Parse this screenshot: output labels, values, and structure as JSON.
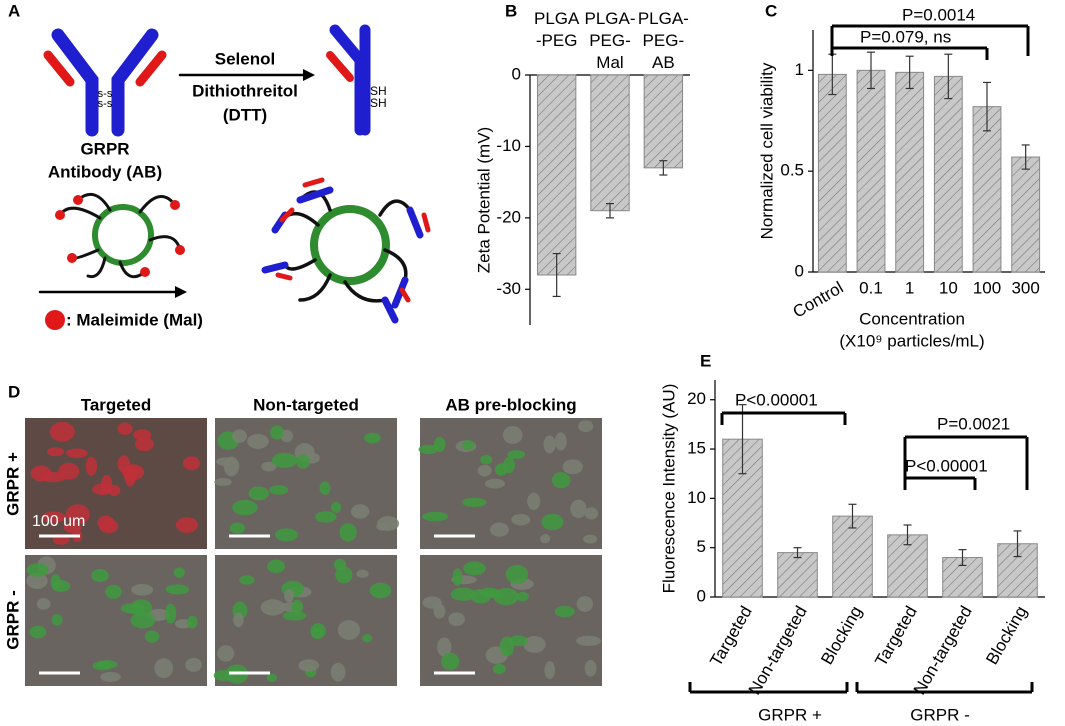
{
  "panel_labels": [
    "A",
    "B",
    "C",
    "D",
    "E"
  ],
  "diagram": {
    "disulfide": [
      "s-s",
      "s-s"
    ],
    "antibody": [
      "GRPR",
      "Antibody (AB)"
    ],
    "reagents": [
      "Selenol",
      "Dithiothreitol",
      "(DTT)"
    ],
    "thiols": [
      "SH",
      "SH"
    ],
    "legend": ": Maleimide (Mal)"
  },
  "micrographs": {
    "columns": [
      "Targeted",
      "Non-targeted",
      "AB pre-blocking"
    ],
    "rows": [
      "GRPR +",
      "GRPR -"
    ],
    "scale_bar": "100 um"
  },
  "chart_data": [
    {
      "type": "bar",
      "categories": [
        "PLGA\n-PEG",
        "PLGA-\nPEG-\nMal",
        "PLGA-\nPEG-\nAB"
      ],
      "values": [
        -28,
        -19,
        -13
      ],
      "errors": [
        3,
        1,
        1
      ],
      "ylabel": "Zeta Potential (mV)",
      "ylim": [
        -35,
        0
      ],
      "yticks": [
        0,
        -10,
        -20,
        -30
      ],
      "color": "#c8c8c8"
    },
    {
      "type": "bar",
      "categories": [
        "Control",
        "0.1",
        "1",
        "10",
        "100",
        "300"
      ],
      "values": [
        0.98,
        1.0,
        0.99,
        0.97,
        0.82,
        0.57
      ],
      "errors": [
        0.1,
        0.09,
        0.08,
        0.11,
        0.12,
        0.06
      ],
      "ylabel": "Normalized cell viability",
      "xlabel": [
        "Concentration",
        "(X10⁹ particles/mL)"
      ],
      "ylim": [
        0,
        1.2
      ],
      "yticks": [
        0,
        0.5,
        1
      ],
      "color": "#c8c8c8",
      "annotations": [
        "P=0.0014",
        "P=0.079, ns"
      ]
    },
    {
      "type": "bar",
      "categories": [
        "Targeted",
        "Non-targeted",
        "Blocking",
        "Targeted",
        "Non-targeted",
        "Blocking"
      ],
      "values": [
        16,
        4.5,
        8.2,
        6.3,
        4,
        5.4
      ],
      "errors": [
        3.5,
        0.5,
        1.2,
        1,
        0.8,
        1.3
      ],
      "ylabel": "Fluorescence Intensity (AU)",
      "ylim": [
        0,
        22
      ],
      "yticks": [
        0,
        5,
        10,
        15,
        20
      ],
      "color": "#c8c8c8",
      "groups": [
        "GRPR +",
        "GRPR -"
      ],
      "annotations": [
        "P<0.00001",
        "P=0.0021",
        "P<0.00001"
      ]
    }
  ]
}
